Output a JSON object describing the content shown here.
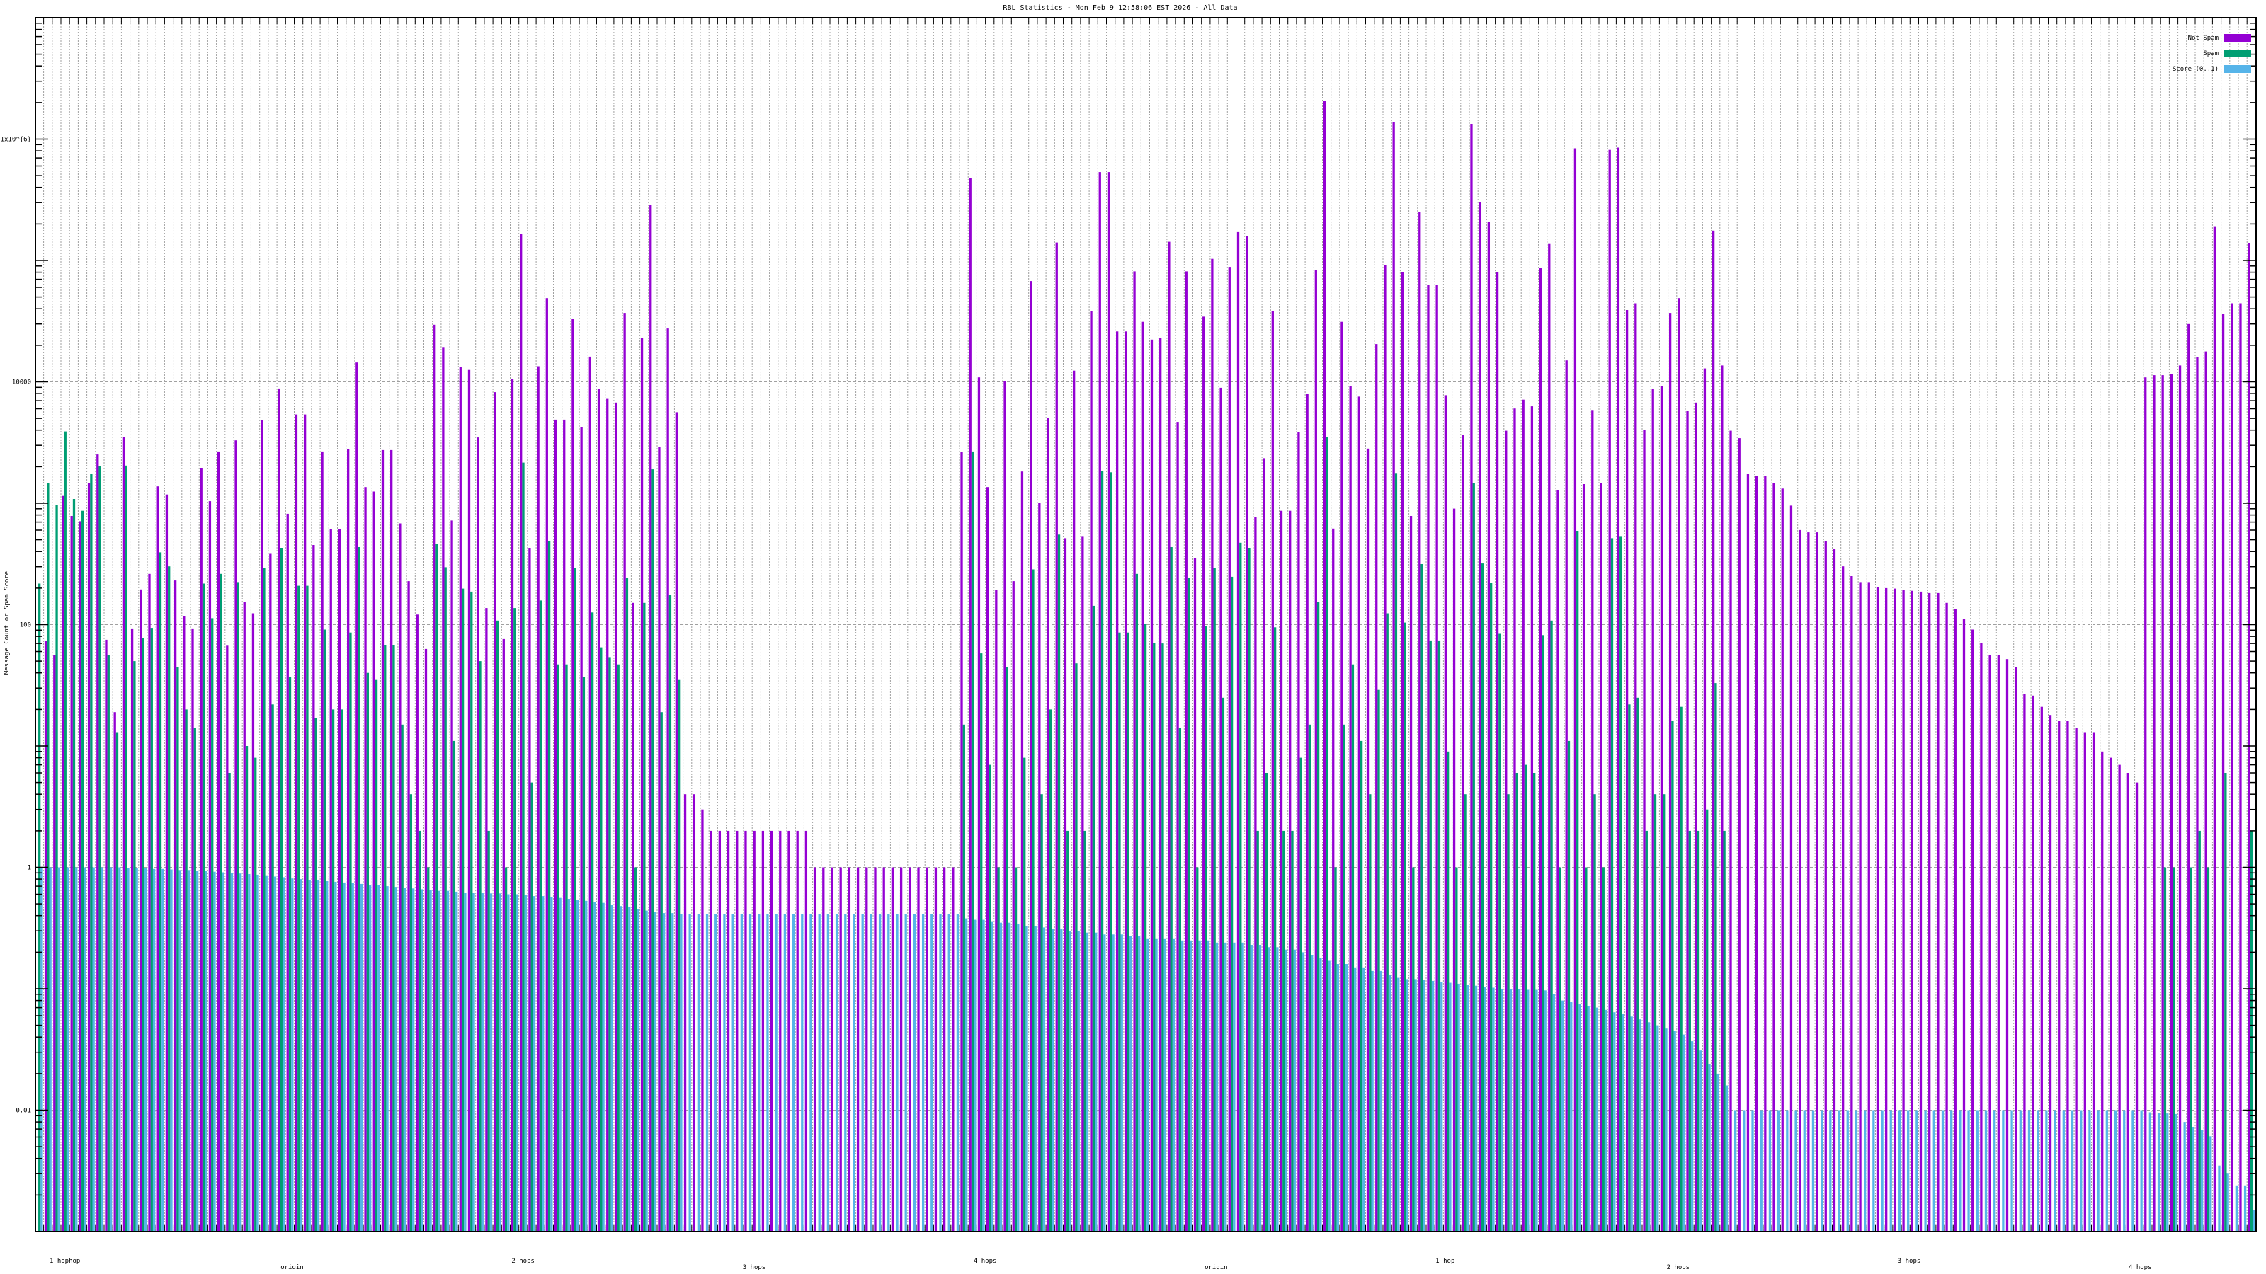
{
  "chart_data": {
    "type": "bar",
    "title": "RBL Statistics - Mon Feb  9 12:58:06 EST 2026 - All Data",
    "xlabel": "",
    "ylabel": "Message Count or Spam Score",
    "yscale": "log",
    "ylim": [
      0.001,
      10000000
    ],
    "y_ticks": [
      {
        "value": 1000000,
        "label": "1x10^{6}"
      },
      {
        "value": 10000,
        "label": "10000"
      },
      {
        "value": 100,
        "label": "100"
      },
      {
        "value": 1,
        "label": "1"
      },
      {
        "value": 0.01,
        "label": "0.01"
      }
    ],
    "grid": true,
    "legend_position": "top-right",
    "x_tick_label_fragments": [
      "1 hophop",
      "origin",
      "2 hops",
      "3 hops",
      "4 hops",
      "origin",
      "1 hop",
      "2 hops",
      "3 hops",
      "4 hops"
    ],
    "series": [
      {
        "name": "Not Spam",
        "color": "#9400d3",
        "values": [
          null,
          73,
          56,
          1148,
          785,
          711,
          1477,
          2522,
          75,
          19,
          3533,
          93,
          195,
          262,
          1377,
          1180,
          231,
          118,
          93,
          1958,
          1040,
          2667,
          67,
          3296,
          154,
          124,
          4810,
          383,
          8810,
          819,
          5385,
          5385,
          453,
          2667,
          609,
          609,
          2782,
          14420,
          1358,
          1248,
          2742,
          2742,
          682,
          228,
          121,
          63,
          29530,
          19360,
          721,
          13250,
          12530,
          3483,
          137,
          8220,
          76,
          10580,
          166400,
          429,
          13430,
          48980,
          4885,
          4885,
          33040,
          4240,
          16130,
          8690,
          7240,
          6745,
          36980,
          151,
          22920,
          288000,
          2902,
          27530,
          5620,
          4,
          4,
          3,
          2,
          2,
          2,
          2,
          2,
          2,
          2,
          2,
          2,
          2,
          2,
          2,
          1,
          1,
          1,
          1,
          1,
          1,
          1,
          1,
          1,
          1,
          1,
          1,
          1,
          1,
          1,
          1,
          1,
          2630,
          477700,
          10880,
          1358,
          192,
          10140,
          228,
          1824,
          67660,
          1011,
          5020,
          140600,
          515,
          12360,
          529,
          38020,
          534900,
          534900,
          26020,
          26020,
          81280,
          31240,
          22290,
          22920,
          142600,
          4680,
          81280,
          352,
          34440,
          103200,
          8930,
          88500,
          171300,
          159600,
          774,
          2350,
          38020,
          866,
          866,
          3845,
          7980,
          83580,
          2064000,
          618,
          31240,
          9190,
          7550,
          2820,
          20480,
          90970,
          1372000,
          80170,
          785,
          250300,
          63100,
          63100,
          7763,
          903,
          3631,
          1334000,
          300600,
          208400,
          80170,
          3954,
          6026,
          7129,
          6281,
          87100,
          136800,
          1283,
          15030,
          839500,
          1437,
          5861,
          1477,
          815300,
          851000,
          39090,
          44370,
          4009,
          8690,
          9190,
          36980,
          48980,
          5781,
          6745,
          12880,
          176200,
          13630,
          3954,
          3433,
          1750,
          1676,
          1676,
          1456,
          1320,
          955,
          601,
          576,
          576,
          486,
          423,
          302,
          251,
          224,
          224,
          203,
          200,
          198,
          192,
          190,
          187,
          182,
          182,
          151,
          135,
          111,
          91,
          71,
          56,
          56,
          52,
          45,
          27,
          26,
          21,
          18,
          16,
          16,
          14,
          13,
          13,
          9,
          8,
          7,
          6,
          5,
          10880,
          11350,
          11350,
          11510,
          13630,
          29940,
          15910,
          17790,
          188900,
          36480,
          44370,
          44370,
          138700
        ]
      },
      {
        "name": "Spam",
        "color": "#009e73",
        "values": [
          218,
          1456,
          968,
          3900,
          1084,
          866,
          1750,
          2014,
          56,
          13,
          2042,
          50,
          78,
          94,
          394,
          302,
          45,
          20,
          14,
          218,
          113,
          262,
          6,
          224,
          10,
          8,
          293,
          22,
          429,
          37,
          209,
          209,
          17,
          91,
          20,
          20,
          86,
          435,
          40,
          35,
          68,
          68,
          15,
          4,
          2,
          1,
          460,
          297,
          11,
          198,
          187,
          50,
          2,
          108,
          1,
          137,
          2160,
          5,
          158,
          486,
          47,
          47,
          293,
          37,
          126,
          65,
          54,
          47,
          244,
          1,
          151,
          1903,
          19,
          177,
          35,
          null,
          null,
          null,
          null,
          null,
          null,
          null,
          null,
          null,
          null,
          null,
          null,
          null,
          null,
          null,
          null,
          null,
          null,
          null,
          null,
          null,
          null,
          null,
          null,
          null,
          null,
          null,
          null,
          null,
          null,
          null,
          null,
          15,
          2670,
          58,
          7,
          1,
          45,
          1,
          8,
          285,
          4,
          20,
          552,
          2,
          48,
          2,
          143,
          1850,
          1798,
          86,
          86,
          262,
          101,
          71,
          70,
          435,
          14,
          241,
          1,
          98,
          293,
          25,
          248,
          473,
          429,
          2,
          6,
          95,
          2,
          2,
          8,
          15,
          154,
          3533,
          1,
          15,
          47,
          11,
          4,
          29,
          124,
          1774,
          104,
          1,
          315,
          74,
          74,
          9,
          1,
          4,
          1477,
          319,
          221,
          84,
          4,
          6,
          7,
          6,
          82,
          108,
          1,
          11,
          592,
          1,
          4,
          1,
          515,
          529,
          22,
          25,
          2,
          4,
          4,
          16,
          21,
          2,
          2,
          3,
          33,
          2,
          null,
          null,
          null,
          null,
          null,
          null,
          null,
          null,
          null,
          null,
          null,
          null,
          null,
          null,
          null,
          null,
          null,
          null,
          null,
          null,
          null,
          null,
          null,
          null,
          null,
          null,
          null,
          null,
          null,
          null,
          null,
          null,
          null,
          null,
          null,
          null,
          null,
          null,
          null,
          null,
          null,
          null,
          null,
          null,
          null,
          null,
          null,
          null,
          null,
          null,
          1,
          1,
          null,
          1,
          2,
          1,
          null,
          6,
          null,
          null,
          2
        ]
      },
      {
        "name": "Score (0..1)",
        "color": "#56b4e9",
        "values": [
          1,
          1,
          1,
          1,
          1,
          1,
          1,
          1,
          1,
          1,
          0.99,
          0.98,
          0.98,
          0.97,
          0.97,
          0.96,
          0.95,
          0.95,
          0.94,
          0.93,
          0.92,
          0.91,
          0.9,
          0.89,
          0.88,
          0.87,
          0.86,
          0.84,
          0.83,
          0.81,
          0.8,
          0.79,
          0.78,
          0.77,
          0.76,
          0.75,
          0.74,
          0.73,
          0.72,
          0.71,
          0.7,
          0.69,
          0.68,
          0.67,
          0.66,
          0.65,
          0.64,
          0.64,
          0.63,
          0.62,
          0.62,
          0.62,
          0.61,
          0.61,
          0.6,
          0.6,
          0.59,
          0.58,
          0.58,
          0.57,
          0.56,
          0.55,
          0.54,
          0.53,
          0.52,
          0.51,
          0.49,
          0.48,
          0.47,
          0.45,
          0.44,
          0.43,
          0.42,
          0.42,
          0.41,
          0.41,
          0.41,
          0.41,
          0.41,
          0.41,
          0.41,
          0.41,
          0.41,
          0.41,
          0.41,
          0.41,
          0.41,
          0.41,
          0.41,
          0.41,
          0.41,
          0.41,
          0.41,
          0.41,
          0.41,
          0.41,
          0.41,
          0.41,
          0.41,
          0.41,
          0.41,
          0.41,
          0.41,
          0.41,
          0.41,
          0.41,
          0.41,
          0.38,
          0.37,
          0.37,
          0.36,
          0.35,
          0.35,
          0.34,
          0.33,
          0.33,
          0.32,
          0.31,
          0.31,
          0.3,
          0.3,
          0.29,
          0.29,
          0.28,
          0.28,
          0.28,
          0.27,
          0.27,
          0.26,
          0.26,
          0.26,
          0.26,
          0.25,
          0.25,
          0.25,
          0.25,
          0.24,
          0.24,
          0.24,
          0.24,
          0.23,
          0.23,
          0.22,
          0.22,
          0.21,
          0.21,
          0.2,
          0.19,
          0.18,
          0.17,
          0.16,
          0.16,
          0.15,
          0.15,
          0.14,
          0.14,
          0.13,
          0.123,
          0.12,
          0.12,
          0.118,
          0.116,
          0.114,
          0.112,
          0.11,
          0.108,
          0.106,
          0.104,
          0.102,
          0.1,
          0.1,
          0.099,
          0.098,
          0.098,
          0.097,
          0.09,
          0.08,
          0.078,
          0.075,
          0.072,
          0.07,
          0.067,
          0.064,
          0.062,
          0.059,
          0.056,
          0.053,
          0.05,
          0.047,
          0.045,
          0.042,
          0.037,
          0.031,
          0.024,
          0.02,
          0.016,
          0.01,
          0.01,
          0.01,
          0.01,
          0.01,
          0.01,
          0.01,
          0.01,
          0.01,
          0.01,
          0.01,
          0.01,
          0.01,
          0.01,
          0.01,
          0.01,
          0.01,
          0.01,
          0.01,
          0.01,
          0.01,
          0.01,
          0.01,
          0.01,
          0.01,
          0.01,
          0.01,
          0.01,
          0.01,
          0.01,
          0.01,
          0.01,
          0.01,
          0.01,
          0.01,
          0.01,
          0.01,
          0.01,
          0.01,
          0.01,
          0.01,
          0.01,
          0.01,
          0.01,
          0.01,
          0.01,
          0.01,
          0.01,
          0.0096,
          0.0095,
          0.0094,
          0.0093,
          0.008,
          0.0072,
          0.0069,
          0.0061,
          0.0035,
          0.003,
          0.0024,
          0.0024,
          0.0015
        ]
      }
    ]
  }
}
